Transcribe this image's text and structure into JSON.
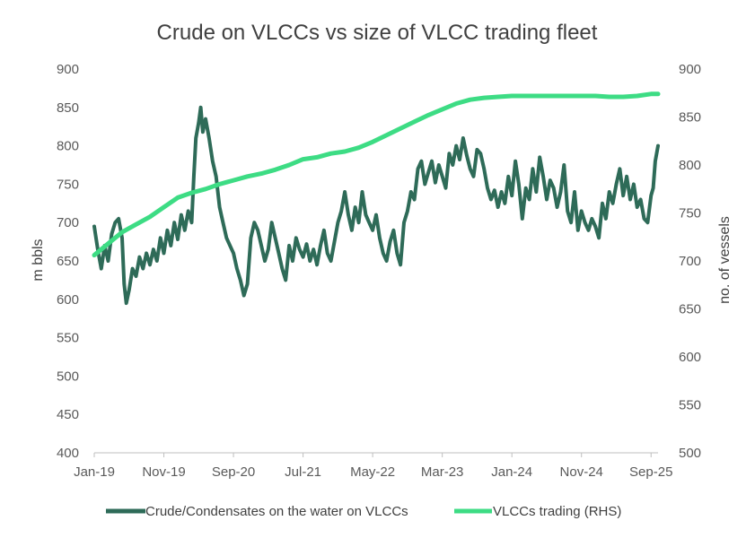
{
  "chart_data": {
    "type": "line",
    "title": "Crude on VLCCs vs size of VLCC trading fleet",
    "xlabel": "",
    "ylabel": "m bbls",
    "y2label": "no. of vessels",
    "x_tick_labels": [
      "Jan-19",
      "Nov-19",
      "Sep-20",
      "Jul-21",
      "May-22",
      "Mar-23",
      "Jan-24",
      "Nov-24",
      "Sep-25"
    ],
    "x_tick_months": [
      0,
      10,
      20,
      30,
      40,
      50,
      60,
      70,
      80
    ],
    "x_range_months": [
      0,
      81
    ],
    "ylim": [
      400,
      900
    ],
    "y_ticks": [
      400,
      450,
      500,
      550,
      600,
      650,
      700,
      750,
      800,
      850,
      900
    ],
    "y2lim": [
      500,
      900
    ],
    "y2_ticks": [
      500,
      550,
      600,
      650,
      700,
      750,
      800,
      850,
      900
    ],
    "legend_position": "bottom",
    "series": [
      {
        "name": "Crude/Condensates on the water on VLCCs",
        "axis": "left",
        "color": "#2e6b58",
        "points": [
          [
            0,
            695
          ],
          [
            0.5,
            665
          ],
          [
            1,
            640
          ],
          [
            1.5,
            670
          ],
          [
            2,
            650
          ],
          [
            2.5,
            685
          ],
          [
            3,
            700
          ],
          [
            3.5,
            705
          ],
          [
            4,
            680
          ],
          [
            4.3,
            620
          ],
          [
            4.6,
            595
          ],
          [
            5,
            612
          ],
          [
            5.5,
            640
          ],
          [
            6,
            630
          ],
          [
            6.5,
            655
          ],
          [
            7,
            640
          ],
          [
            7.5,
            660
          ],
          [
            8,
            645
          ],
          [
            8.5,
            665
          ],
          [
            9,
            650
          ],
          [
            9.5,
            680
          ],
          [
            10,
            660
          ],
          [
            10.5,
            690
          ],
          [
            11,
            670
          ],
          [
            11.5,
            700
          ],
          [
            12,
            678
          ],
          [
            12.5,
            710
          ],
          [
            13,
            690
          ],
          [
            13.5,
            715
          ],
          [
            14,
            700
          ],
          [
            14.3,
            760
          ],
          [
            14.6,
            810
          ],
          [
            15,
            830
          ],
          [
            15.3,
            850
          ],
          [
            15.6,
            818
          ],
          [
            16,
            835
          ],
          [
            16.5,
            810
          ],
          [
            17,
            780
          ],
          [
            17.5,
            760
          ],
          [
            18,
            720
          ],
          [
            18.5,
            700
          ],
          [
            19,
            680
          ],
          [
            19.5,
            670
          ],
          [
            20,
            660
          ],
          [
            20.5,
            640
          ],
          [
            21,
            625
          ],
          [
            21.5,
            605
          ],
          [
            22,
            620
          ],
          [
            22.5,
            680
          ],
          [
            23,
            700
          ],
          [
            23.5,
            690
          ],
          [
            24,
            670
          ],
          [
            24.5,
            650
          ],
          [
            25,
            665
          ],
          [
            25.5,
            700
          ],
          [
            26,
            680
          ],
          [
            26.5,
            660
          ],
          [
            27,
            640
          ],
          [
            27.5,
            625
          ],
          [
            28,
            670
          ],
          [
            28.5,
            650
          ],
          [
            29,
            680
          ],
          [
            29.5,
            665
          ],
          [
            30,
            655
          ],
          [
            30.5,
            672
          ],
          [
            31,
            650
          ],
          [
            31.5,
            665
          ],
          [
            32,
            645
          ],
          [
            32.5,
            670
          ],
          [
            33,
            690
          ],
          [
            33.5,
            660
          ],
          [
            34,
            650
          ],
          [
            34.5,
            675
          ],
          [
            35,
            700
          ],
          [
            35.5,
            715
          ],
          [
            36,
            740
          ],
          [
            36.5,
            710
          ],
          [
            37,
            690
          ],
          [
            37.5,
            720
          ],
          [
            38,
            700
          ],
          [
            38.5,
            740
          ],
          [
            39,
            710
          ],
          [
            39.5,
            700
          ],
          [
            40,
            690
          ],
          [
            40.5,
            710
          ],
          [
            41,
            680
          ],
          [
            41.5,
            660
          ],
          [
            42,
            650
          ],
          [
            42.5,
            675
          ],
          [
            43,
            690
          ],
          [
            43.5,
            660
          ],
          [
            44,
            645
          ],
          [
            44.5,
            700
          ],
          [
            45,
            715
          ],
          [
            45.5,
            740
          ],
          [
            46,
            730
          ],
          [
            46.5,
            770
          ],
          [
            47,
            780
          ],
          [
            47.5,
            750
          ],
          [
            48,
            765
          ],
          [
            48.5,
            780
          ],
          [
            49,
            752
          ],
          [
            49.5,
            775
          ],
          [
            50,
            760
          ],
          [
            50.5,
            745
          ],
          [
            51,
            790
          ],
          [
            51.5,
            775
          ],
          [
            52,
            800
          ],
          [
            52.5,
            782
          ],
          [
            53,
            810
          ],
          [
            53.5,
            788
          ],
          [
            54,
            770
          ],
          [
            54.5,
            760
          ],
          [
            55,
            795
          ],
          [
            55.5,
            790
          ],
          [
            56,
            770
          ],
          [
            56.5,
            745
          ],
          [
            57,
            730
          ],
          [
            57.5,
            742
          ],
          [
            58,
            720
          ],
          [
            58.5,
            740
          ],
          [
            59,
            725
          ],
          [
            59.5,
            760
          ],
          [
            60,
            735
          ],
          [
            60.5,
            780
          ],
          [
            61,
            750
          ],
          [
            61.5,
            705
          ],
          [
            62,
            745
          ],
          [
            62.5,
            730
          ],
          [
            63,
            770
          ],
          [
            63.5,
            740
          ],
          [
            64,
            785
          ],
          [
            64.5,
            760
          ],
          [
            65,
            730
          ],
          [
            65.5,
            755
          ],
          [
            66,
            745
          ],
          [
            66.5,
            720
          ],
          [
            67,
            740
          ],
          [
            67.5,
            775
          ],
          [
            68,
            715
          ],
          [
            68.5,
            700
          ],
          [
            69,
            740
          ],
          [
            69.5,
            690
          ],
          [
            70,
            715
          ],
          [
            70.5,
            700
          ],
          [
            71,
            690
          ],
          [
            71.5,
            705
          ],
          [
            72,
            695
          ],
          [
            72.5,
            680
          ],
          [
            73,
            725
          ],
          [
            73.5,
            705
          ],
          [
            74,
            740
          ],
          [
            74.5,
            725
          ],
          [
            75,
            750
          ],
          [
            75.5,
            770
          ],
          [
            76,
            735
          ],
          [
            76.5,
            760
          ],
          [
            77,
            730
          ],
          [
            77.5,
            750
          ],
          [
            78,
            720
          ],
          [
            78.5,
            730
          ],
          [
            79,
            705
          ],
          [
            79.5,
            700
          ],
          [
            80,
            735
          ],
          [
            80.3,
            745
          ],
          [
            80.6,
            780
          ],
          [
            81,
            800
          ]
        ]
      },
      {
        "name": "VLCCs trading (RHS)",
        "axis": "right",
        "color": "#3ddc84",
        "points": [
          [
            0,
            706
          ],
          [
            2,
            718
          ],
          [
            4,
            730
          ],
          [
            6,
            738
          ],
          [
            8,
            746
          ],
          [
            10,
            756
          ],
          [
            12,
            766
          ],
          [
            14,
            771
          ],
          [
            16,
            775
          ],
          [
            18,
            780
          ],
          [
            20,
            784
          ],
          [
            22,
            788
          ],
          [
            24,
            791
          ],
          [
            26,
            795
          ],
          [
            28,
            800
          ],
          [
            30,
            806
          ],
          [
            32,
            808
          ],
          [
            34,
            812
          ],
          [
            36,
            814
          ],
          [
            38,
            818
          ],
          [
            40,
            824
          ],
          [
            42,
            831
          ],
          [
            44,
            838
          ],
          [
            46,
            845
          ],
          [
            48,
            852
          ],
          [
            50,
            858
          ],
          [
            52,
            864
          ],
          [
            54,
            868
          ],
          [
            56,
            870
          ],
          [
            58,
            871
          ],
          [
            60,
            872
          ],
          [
            62,
            872
          ],
          [
            64,
            872
          ],
          [
            66,
            872
          ],
          [
            68,
            872
          ],
          [
            70,
            872
          ],
          [
            72,
            872
          ],
          [
            74,
            871
          ],
          [
            76,
            871
          ],
          [
            78,
            872
          ],
          [
            80,
            874
          ],
          [
            81,
            874
          ]
        ]
      }
    ]
  }
}
